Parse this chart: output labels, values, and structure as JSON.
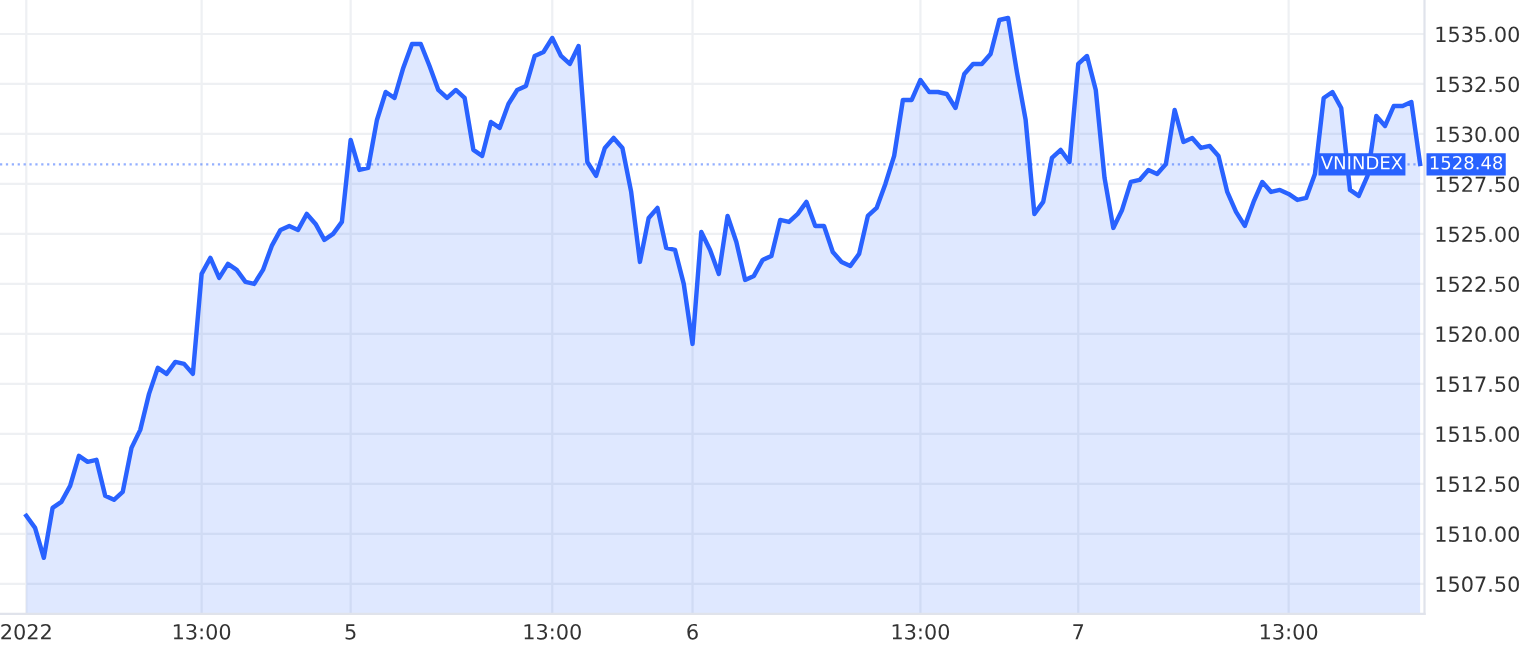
{
  "chart_data": {
    "type": "area",
    "categories": [
      "2022",
      null,
      null,
      null,
      null,
      null,
      null,
      null,
      null,
      null,
      null,
      null,
      null,
      null,
      null,
      null,
      null,
      null,
      null,
      null,
      "13:00",
      null,
      null,
      null,
      null,
      null,
      null,
      null,
      null,
      null,
      null,
      null,
      null,
      null,
      null,
      null,
      null,
      "5",
      null,
      null,
      null,
      null,
      null,
      null,
      null,
      null,
      null,
      null,
      null,
      null,
      null,
      null,
      null,
      null,
      null,
      null,
      null,
      null,
      null,
      null,
      "13:00",
      null,
      null,
      null,
      null,
      null,
      null,
      null,
      null,
      null,
      null,
      null,
      null,
      null,
      null,
      null,
      "6",
      null,
      null,
      null,
      null,
      null,
      null,
      null,
      null,
      null,
      null,
      null,
      null,
      null,
      null,
      null,
      null,
      null,
      null,
      null,
      null,
      null,
      null,
      null,
      null,
      null,
      "13:00",
      null,
      null,
      null,
      null,
      null,
      null,
      null,
      null,
      null,
      null,
      null,
      null,
      null,
      null,
      null,
      null,
      null,
      "7",
      null,
      null,
      null,
      null,
      null,
      null,
      null,
      null,
      null,
      null,
      null,
      null,
      null,
      null,
      null,
      null,
      null,
      null,
      null,
      null,
      null,
      null,
      null,
      "13:00",
      null,
      null,
      null,
      null,
      null,
      null,
      null,
      null,
      null,
      null,
      null,
      null,
      null,
      null,
      null
    ],
    "series": [
      {
        "name": "VNINDEX",
        "color": "#2962ff",
        "values": [
          1510.9,
          1510.3,
          1508.8,
          1511.3,
          1511.6,
          1512.4,
          1513.9,
          1513.6,
          1513.7,
          1511.9,
          1511.7,
          1512.1,
          1514.3,
          1515.2,
          1517.0,
          1518.3,
          1518.0,
          1518.6,
          1518.5,
          1518.0,
          1523.0,
          1523.8,
          1522.8,
          1523.5,
          1523.2,
          1522.6,
          1522.5,
          1523.2,
          1524.4,
          1525.2,
          1525.4,
          1525.2,
          1526.0,
          1525.5,
          1524.7,
          1525.0,
          1525.6,
          1529.7,
          1528.2,
          1528.3,
          1530.7,
          1532.1,
          1531.8,
          1533.3,
          1534.5,
          1534.5,
          1533.4,
          1532.2,
          1531.8,
          1532.2,
          1531.8,
          1529.2,
          1528.9,
          1530.6,
          1530.3,
          1531.5,
          1532.2,
          1532.4,
          1533.9,
          1534.1,
          1534.8,
          1533.9,
          1533.5,
          1534.4,
          1528.6,
          1527.9,
          1529.3,
          1529.8,
          1529.3,
          1527.1,
          1523.6,
          1525.8,
          1526.3,
          1524.3,
          1524.2,
          1522.5,
          1519.5,
          1525.1,
          1524.2,
          1523.0,
          1525.9,
          1524.6,
          1522.7,
          1522.9,
          1523.7,
          1523.9,
          1525.7,
          1525.6,
          1526.0,
          1526.6,
          1525.4,
          1525.4,
          1524.1,
          1523.6,
          1523.4,
          1524.0,
          1525.9,
          1526.3,
          1527.5,
          1528.9,
          1531.7,
          1531.7,
          1532.7,
          1532.1,
          1532.1,
          1532.0,
          1531.3,
          1533.0,
          1533.5,
          1533.5,
          1534.0,
          1535.7,
          1535.8,
          1533.1,
          1530.7,
          1526.0,
          1526.6,
          1528.8,
          1529.2,
          1528.6,
          1533.5,
          1533.9,
          1532.2,
          1527.8,
          1525.3,
          1526.2,
          1527.6,
          1527.7,
          1528.2,
          1528.0,
          1528.5,
          1531.2,
          1529.6,
          1529.8,
          1529.3,
          1529.4,
          1528.9,
          1527.1,
          1526.1,
          1525.4,
          1526.6,
          1527.6,
          1527.1,
          1527.2,
          1527.0,
          1526.7,
          1526.8,
          1528.0,
          1531.8,
          1532.1,
          1531.3,
          1527.2,
          1526.9,
          1527.9,
          1530.9,
          1530.4,
          1531.4,
          1531.4,
          1531.6,
          1528.5
        ]
      }
    ],
    "ylim": [
      1506.0,
      1536.7
    ],
    "yticks": [
      {
        "value": 1507.5,
        "label": "1507.50"
      },
      {
        "value": 1510,
        "label": "1510.00"
      },
      {
        "value": 1512.5,
        "label": "1512.50"
      },
      {
        "value": 1515,
        "label": "1515.00"
      },
      {
        "value": 1517.5,
        "label": "1517.50"
      },
      {
        "value": 1520,
        "label": "1520.00"
      },
      {
        "value": 1522.5,
        "label": "1522.50"
      },
      {
        "value": 1525,
        "label": "1525.00"
      },
      {
        "value": 1527.5,
        "label": "1527.50"
      },
      {
        "value": 1530,
        "label": "1530.00"
      },
      {
        "value": 1532.5,
        "label": "1532.50"
      },
      {
        "value": 1535,
        "label": "1535.00"
      }
    ],
    "ref_lines": [
      {
        "axis": "y",
        "value": 1528.48,
        "label": "1528.48",
        "color": "#2962ff",
        "line_style": "dotted"
      }
    ],
    "grid": true,
    "legend": "right"
  }
}
